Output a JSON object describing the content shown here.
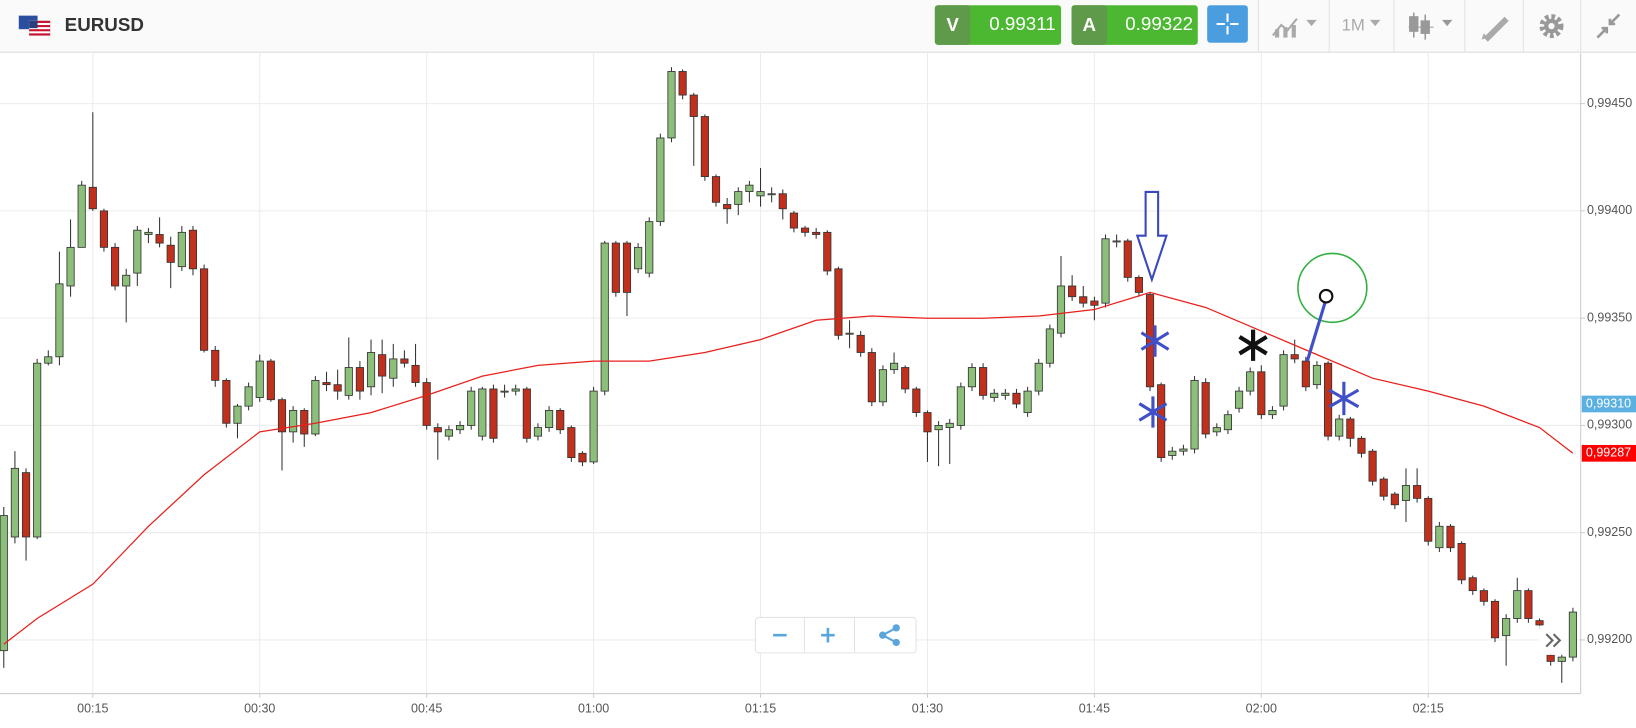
{
  "header": {
    "symbol": "EURUSD",
    "bid_label": "V",
    "bid": 0.99311,
    "ask_label": "A",
    "ask": 0.99322,
    "timeframe": "1M"
  },
  "chart_data": {
    "type": "candlestick",
    "up_color": "#8cc07a",
    "down_color": "#c0301c",
    "xlim": [
      6.66,
      148.7
    ],
    "ylim": [
      0.99175,
      0.99474
    ],
    "xticks": [
      {
        "value": 15,
        "label": "00:15"
      },
      {
        "value": 30,
        "label": "00:30"
      },
      {
        "value": 45,
        "label": "00:45"
      },
      {
        "value": 60,
        "label": "01:00"
      },
      {
        "value": 75,
        "label": "01:15"
      },
      {
        "value": 90,
        "label": "01:30"
      },
      {
        "value": 105,
        "label": "01:45"
      },
      {
        "value": 120,
        "label": "02:00"
      },
      {
        "value": 135,
        "label": "02:15"
      }
    ],
    "yticks": [
      {
        "value": 0.992,
        "label": "0,99200"
      },
      {
        "value": 0.9925,
        "label": "0,99250"
      },
      {
        "value": 0.993,
        "label": "0,99300"
      },
      {
        "value": 0.9935,
        "label": "0,99350"
      },
      {
        "value": 0.994,
        "label": "0,99400"
      },
      {
        "value": 0.9945,
        "label": "0,99450"
      }
    ],
    "grid": true,
    "x": [
      7,
      8,
      9,
      10,
      11,
      12,
      13,
      14,
      15,
      16,
      17,
      18,
      19,
      20,
      21,
      22,
      23,
      24,
      25,
      26,
      27,
      28,
      29,
      30,
      31,
      32,
      33,
      34,
      35,
      36,
      37,
      38,
      39,
      40,
      41,
      42,
      43,
      44,
      45,
      46,
      47,
      48,
      49,
      50,
      51,
      52,
      53,
      54,
      55,
      56,
      57,
      58,
      59,
      60,
      61,
      62,
      63,
      64,
      65,
      66,
      67,
      68,
      69,
      70,
      71,
      72,
      73,
      74,
      75,
      76,
      77,
      78,
      79,
      80,
      81,
      82,
      83,
      84,
      85,
      86,
      87,
      88,
      89,
      90,
      91,
      92,
      93,
      94,
      95,
      96,
      97,
      98,
      99,
      100,
      101,
      102,
      103,
      104,
      105,
      106,
      107,
      108,
      109,
      110,
      111,
      112,
      113,
      114,
      115,
      116,
      117,
      118,
      119,
      120,
      121,
      122,
      123,
      124,
      125,
      126,
      127,
      128,
      129,
      130,
      131,
      132,
      133,
      134,
      135,
      136,
      137,
      138,
      139,
      140,
      141,
      142,
      143,
      144,
      145,
      146,
      147,
      148
    ],
    "open": [
      0.99195,
      0.99248,
      0.99278,
      0.99248,
      0.99329,
      0.99332,
      0.99365,
      0.99383,
      0.99411,
      0.994,
      0.99383,
      0.99365,
      0.99371,
      0.99389,
      0.99389,
      0.99384,
      0.99374,
      0.99391,
      0.99373,
      0.99335,
      0.99321,
      0.99301,
      0.99309,
      0.99313,
      0.9933,
      0.99312,
      0.99297,
      0.99307,
      0.99296,
      0.9932,
      0.99319,
      0.99314,
      0.99327,
      0.99318,
      0.99333,
      0.99322,
      0.99331,
      0.99328,
      0.9932,
      0.99299,
      0.99295,
      0.99298,
      0.993,
      0.99295,
      0.99317,
      0.99316,
      0.99316,
      0.99317,
      0.99295,
      0.99299,
      0.99307,
      0.99299,
      0.99287,
      0.99283,
      0.99316,
      0.99385,
      0.99385,
      0.99373,
      0.99371,
      0.99395,
      0.99434,
      0.99465,
      0.99454,
      0.99444,
      0.99416,
      0.99403,
      0.99403,
      0.99409,
      0.99407,
      0.99408,
      0.99408,
      0.99399,
      0.99392,
      0.9939,
      0.9939,
      0.99373,
      0.99343,
      0.99342,
      0.99334,
      0.99311,
      0.99326,
      0.99327,
      0.99317,
      0.99306,
      0.99298,
      0.99299,
      0.993,
      0.99318,
      0.99327,
      0.99313,
      0.99314,
      0.99315,
      0.99306,
      0.99316,
      0.99329,
      0.99343,
      0.99365,
      0.9936,
      0.99358,
      0.99357,
      0.99386,
      0.99386,
      0.99369,
      0.99361,
      0.99319,
      0.99286,
      0.99288,
      0.99289,
      0.9932,
      0.99297,
      0.99298,
      0.99308,
      0.99316,
      0.99325,
      0.99305,
      0.99309,
      0.99333,
      0.9933,
      0.99319,
      0.99329,
      0.99295,
      0.99303,
      0.99294,
      0.99288,
      0.99275,
      0.99268,
      0.99265,
      0.99272,
      0.99266,
      0.99243,
      0.99253,
      0.99245,
      0.99229,
      0.99223,
      0.99218,
      0.99202,
      0.9921,
      0.99223,
      0.99209,
      0.99193,
      0.9919,
      0.99192
    ],
    "high": [
      0.99262,
      0.99288,
      0.9928,
      0.99331,
      0.99335,
      0.99381,
      0.99396,
      0.99414,
      0.99446,
      0.99401,
      0.99385,
      0.99373,
      0.99393,
      0.99392,
      0.99397,
      0.99388,
      0.99393,
      0.99393,
      0.99375,
      0.99337,
      0.99322,
      0.9931,
      0.9932,
      0.99333,
      0.99331,
      0.99313,
      0.99309,
      0.99308,
      0.99323,
      0.99325,
      0.99326,
      0.99341,
      0.9933,
      0.9934,
      0.9934,
      0.99338,
      0.99335,
      0.99338,
      0.99322,
      0.99301,
      0.993,
      0.99302,
      0.99318,
      0.99318,
      0.99319,
      0.99319,
      0.99319,
      0.99318,
      0.99301,
      0.99309,
      0.99308,
      0.993,
      0.99288,
      0.99318,
      0.99386,
      0.99386,
      0.99386,
      0.99385,
      0.99397,
      0.99436,
      0.99467,
      0.99466,
      0.99455,
      0.99445,
      0.99417,
      0.99406,
      0.99411,
      0.99414,
      0.9942,
      0.99411,
      0.9941,
      0.994,
      0.99393,
      0.99392,
      0.99391,
      0.99374,
      0.99349,
      0.99344,
      0.99336,
      0.99328,
      0.99334,
      0.99328,
      0.99318,
      0.99307,
      0.99302,
      0.99303,
      0.9932,
      0.99329,
      0.99329,
      0.99317,
      0.99317,
      0.99317,
      0.99318,
      0.99331,
      0.99347,
      0.99379,
      0.9937,
      0.99365,
      0.9936,
      0.99389,
      0.99389,
      0.99387,
      0.9937,
      0.99362,
      0.9932,
      0.9929,
      0.99291,
      0.99323,
      0.99322,
      0.99301,
      0.99307,
      0.99318,
      0.99327,
      0.99328,
      0.99309,
      0.99335,
      0.9934,
      0.99332,
      0.9933,
      0.9933,
      0.99305,
      0.99304,
      0.99295,
      0.99289,
      0.99276,
      0.99269,
      0.9928,
      0.9928,
      0.99267,
      0.99255,
      0.99254,
      0.99246,
      0.9923,
      0.99224,
      0.99219,
      0.99212,
      0.99229,
      0.99224,
      0.9921,
      0.99194,
      0.99194,
      0.99215
    ],
    "low": [
      0.99187,
      0.99245,
      0.99237,
      0.99247,
      0.99328,
      0.99328,
      0.9936,
      0.99383,
      0.994,
      0.99381,
      0.99363,
      0.99348,
      0.99365,
      0.99385,
      0.99383,
      0.99364,
      0.99372,
      0.9937,
      0.99334,
      0.99318,
      0.99299,
      0.99294,
      0.99307,
      0.99311,
      0.99311,
      0.99279,
      0.99292,
      0.9929,
      0.99295,
      0.99316,
      0.99312,
      0.99312,
      0.99312,
      0.99314,
      0.99315,
      0.99318,
      0.99327,
      0.99318,
      0.99298,
      0.99284,
      0.99293,
      0.99296,
      0.99298,
      0.99293,
      0.99292,
      0.99313,
      0.99314,
      0.99292,
      0.99293,
      0.99297,
      0.99296,
      0.99283,
      0.99281,
      0.99282,
      0.99314,
      0.9936,
      0.99351,
      0.99371,
      0.99369,
      0.99393,
      0.99432,
      0.99452,
      0.99421,
      0.99414,
      0.99402,
      0.99394,
      0.99398,
      0.99404,
      0.99402,
      0.99404,
      0.99396,
      0.9939,
      0.99388,
      0.99387,
      0.9937,
      0.9934,
      0.99336,
      0.99332,
      0.99309,
      0.99309,
      0.99324,
      0.99315,
      0.99304,
      0.99283,
      0.99281,
      0.99282,
      0.99298,
      0.99316,
      0.99312,
      0.99311,
      0.99312,
      0.99308,
      0.99304,
      0.99314,
      0.99327,
      0.99341,
      0.99358,
      0.99355,
      0.99349,
      0.99355,
      0.99383,
      0.99367,
      0.9936,
      0.99316,
      0.99283,
      0.99284,
      0.99286,
      0.99287,
      0.99294,
      0.99295,
      0.99296,
      0.99306,
      0.99314,
      0.99303,
      0.99303,
      0.99307,
      0.99329,
      0.99316,
      0.99317,
      0.99293,
      0.99293,
      0.9929,
      0.99285,
      0.99272,
      0.99265,
      0.99261,
      0.99255,
      0.99264,
      0.99244,
      0.99241,
      0.99241,
      0.99226,
      0.99221,
      0.99216,
      0.99199,
      0.99188,
      0.99208,
      0.99208,
      0.99205,
      0.99188,
      0.9918,
      0.9919
    ],
    "close": [
      0.99258,
      0.9928,
      0.99248,
      0.99329,
      0.99332,
      0.99366,
      0.99383,
      0.99412,
      0.99401,
      0.99383,
      0.99365,
      0.9937,
      0.99391,
      0.9939,
      0.99385,
      0.99376,
      0.9939,
      0.99373,
      0.99335,
      0.99321,
      0.99301,
      0.99309,
      0.99318,
      0.9933,
      0.99312,
      0.99297,
      0.99307,
      0.99296,
      0.99321,
      0.99319,
      0.99316,
      0.99327,
      0.99316,
      0.99334,
      0.99323,
      0.99331,
      0.99329,
      0.9932,
      0.993,
      0.99297,
      0.99298,
      0.993,
      0.99316,
      0.99317,
      0.99294,
      0.99316,
      0.99317,
      0.99294,
      0.99299,
      0.99307,
      0.99298,
      0.99285,
      0.99283,
      0.99316,
      0.99385,
      0.99362,
      0.99362,
      0.99383,
      0.99395,
      0.99434,
      0.99465,
      0.99454,
      0.99444,
      0.99416,
      0.99404,
      0.99401,
      0.99409,
      0.99412,
      0.99409,
      0.99408,
      0.99401,
      0.99392,
      0.9939,
      0.99389,
      0.99372,
      0.99342,
      0.99343,
      0.99334,
      0.99311,
      0.99326,
      0.99329,
      0.99317,
      0.99306,
      0.99297,
      0.993,
      0.99301,
      0.99318,
      0.99327,
      0.99314,
      0.99315,
      0.99315,
      0.9931,
      0.99316,
      0.99329,
      0.99345,
      0.99365,
      0.9936,
      0.99357,
      0.99356,
      0.99387,
      0.99386,
      0.99369,
      0.99362,
      0.99318,
      0.99285,
      0.99288,
      0.99289,
      0.99321,
      0.99296,
      0.99299,
      0.99305,
      0.99316,
      0.99325,
      0.99305,
      0.99307,
      0.99333,
      0.99331,
      0.99318,
      0.99328,
      0.99295,
      0.99303,
      0.99294,
      0.99287,
      0.99274,
      0.99267,
      0.99263,
      0.99272,
      0.99266,
      0.99246,
      0.99253,
      0.99243,
      0.99228,
      0.99223,
      0.99218,
      0.99201,
      0.9921,
      0.99223,
      0.9921,
      0.99207,
      0.9919,
      0.99192,
      0.99213
    ],
    "ma": {
      "color": "#e8201c",
      "x": [
        7,
        10,
        15,
        20,
        25,
        30,
        35,
        40,
        45,
        50,
        55,
        60,
        65,
        70,
        75,
        80,
        85,
        90,
        95,
        100,
        105,
        110,
        115,
        120,
        125,
        130,
        135,
        140,
        145,
        148
      ],
      "values": [
        0.99198,
        0.9921,
        0.99226,
        0.99253,
        0.99277,
        0.99297,
        0.99301,
        0.99306,
        0.99314,
        0.99323,
        0.99328,
        0.9933,
        0.9933,
        0.99334,
        0.9934,
        0.99349,
        0.99351,
        0.9935,
        0.9935,
        0.99351,
        0.99354,
        0.99362,
        0.99355,
        0.99344,
        0.99333,
        0.99322,
        0.99316,
        0.99309,
        0.99299,
        0.99287
      ]
    },
    "price_tags": [
      {
        "value": 0.9931,
        "label": "0,99310",
        "color": "#5ab0e0"
      },
      {
        "value": 0.99287,
        "label": "0,99287",
        "color": "#ff0000"
      }
    ]
  }
}
